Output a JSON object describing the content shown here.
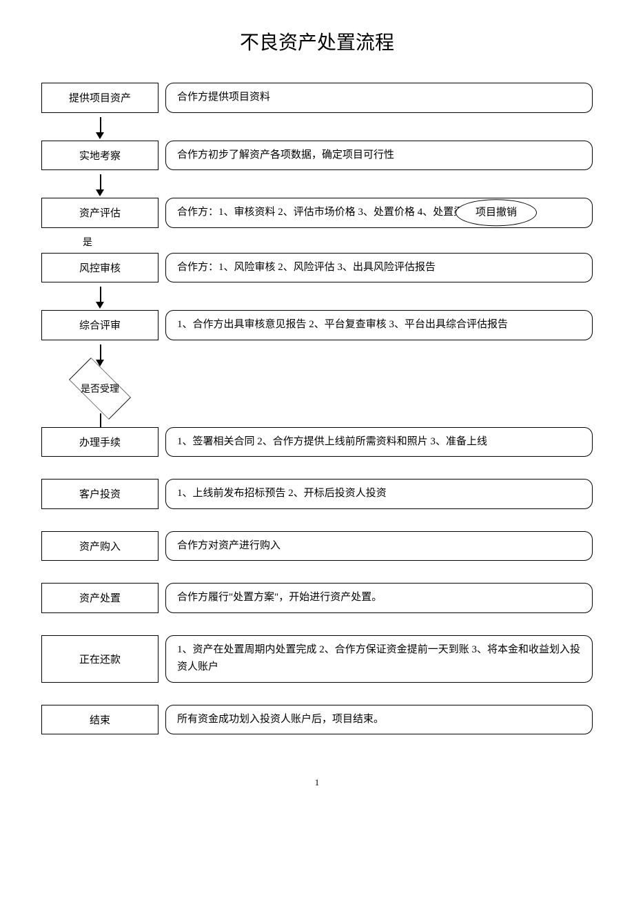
{
  "type": "flowchart",
  "title": "不良资产处置流程",
  "background_color": "#ffffff",
  "border_color": "#000000",
  "font_family": "SimSun",
  "title_fontsize": 28,
  "body_fontsize": 15,
  "page_number": "1",
  "yes_label": "是",
  "cancel_label": "项目撤销",
  "steps": [
    {
      "left": "提供项目资产",
      "right": "合作方提供项目资料",
      "arrow_after": true
    },
    {
      "left": "实地考察",
      "right": "合作方初步了解资产各项数据，确定项目可行性",
      "arrow_after": true
    },
    {
      "left": "资产评估",
      "right": "合作方：1、审核资料 2、评估市场价格 3、处置价格 4、处置渠道",
      "has_cancel": true,
      "yes_after": true
    },
    {
      "left": "风控审核",
      "right": "合作方：1、风险审核 2、风险评估 3、出具风险评估报告",
      "arrow_after": true
    },
    {
      "left": "综合评审",
      "right": "1、合作方出具审核意见报告 2、平台复查审核 3、平台出具综合评估报告",
      "arrow_after": true,
      "decision_after": true
    },
    {
      "left": "办理手续",
      "right": "1、签署相关合同 2、合作方提供上线前所需资料和照片 3、准备上线"
    },
    {
      "left": "客户投资",
      "right": "1、上线前发布招标预告 2、开标后投资人投资"
    },
    {
      "left": "资产购入",
      "right": "合作方对资产进行购入"
    },
    {
      "left": "资产处置",
      "right": "合作方履行\"处置方案\"，开始进行资产处置。"
    },
    {
      "left": "正在还款",
      "right": "1、资产在处置周期内处置完成 2、合作方保证资金提前一天到账 3、将本金和收益划入投资人账户"
    },
    {
      "left": "结束",
      "right": "所有资金成功划入投资人账户后，项目结束。"
    }
  ],
  "decision_label": "是否受理"
}
